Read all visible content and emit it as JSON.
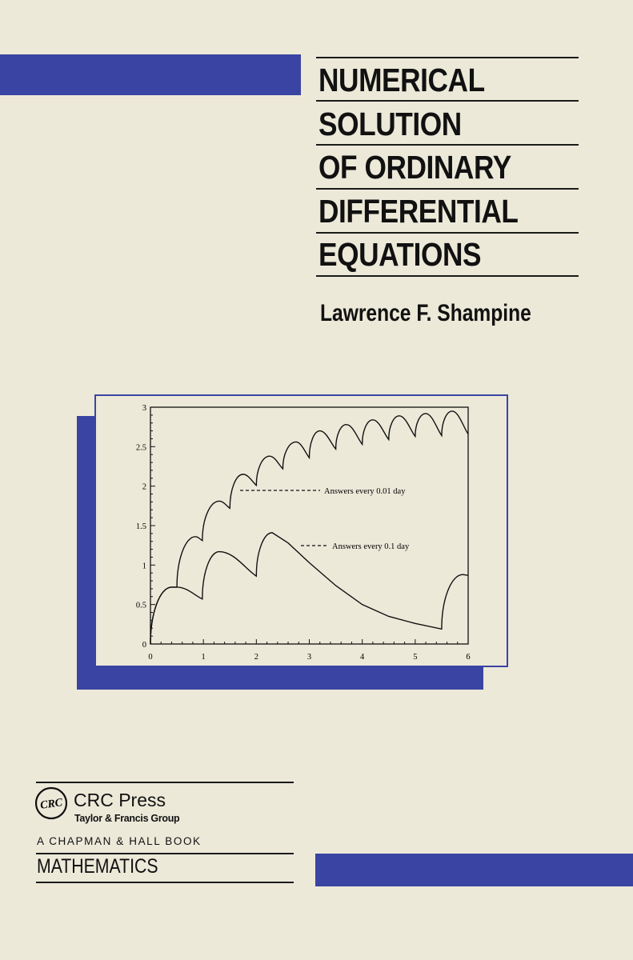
{
  "cover": {
    "title_lines": [
      "NUMERICAL",
      "SOLUTION",
      "OF ORDINARY",
      "DIFFERENTIAL",
      "EQUATIONS"
    ],
    "author": "Lawrence F. Shampine",
    "publisher": {
      "logo_text": "CRC",
      "name": "CRC Press",
      "group": "Taylor & Francis Group",
      "imprint": "A CHAPMAN & HALL BOOK"
    },
    "subject": "MATHEMATICS",
    "colors": {
      "background": "#ece9d9",
      "accent_blue": "#3a44a2",
      "ink": "#111111"
    }
  },
  "chart_data": {
    "type": "line",
    "title": "",
    "xlabel": "",
    "ylabel": "",
    "xlim": [
      0,
      6
    ],
    "ylim": [
      0,
      3
    ],
    "x_ticks": [
      "0",
      "1",
      "2",
      "3",
      "4",
      "5",
      "6"
    ],
    "y_ticks": [
      "0",
      "0.5",
      "1",
      "1.5",
      "2",
      "2.5",
      "3"
    ],
    "grid": false,
    "series": [
      {
        "name": "Answers every 0.01 day",
        "line_style": "dashed-key",
        "points": [
          [
            0,
            0
          ],
          [
            0.4,
            0.72
          ],
          [
            0.5,
            0.72
          ],
          [
            0.85,
            1.36
          ],
          [
            0.98,
            1.31
          ],
          [
            1.3,
            1.81
          ],
          [
            1.5,
            1.72
          ],
          [
            1.75,
            2.15
          ],
          [
            2.0,
            2.01
          ],
          [
            2.25,
            2.38
          ],
          [
            2.5,
            2.22
          ],
          [
            2.75,
            2.56
          ],
          [
            3.0,
            2.36
          ],
          [
            3.2,
            2.7
          ],
          [
            3.5,
            2.47
          ],
          [
            3.7,
            2.78
          ],
          [
            4.0,
            2.53
          ],
          [
            4.2,
            2.84
          ],
          [
            4.5,
            2.59
          ],
          [
            4.7,
            2.89
          ],
          [
            5.0,
            2.63
          ],
          [
            5.2,
            2.92
          ],
          [
            5.5,
            2.64
          ],
          [
            5.7,
            2.95
          ],
          [
            6.0,
            2.66
          ]
        ]
      },
      {
        "name": "Answers every 0.1 day",
        "line_style": "dashed-key",
        "points": [
          [
            0,
            0
          ],
          [
            0.4,
            0.72
          ],
          [
            0.5,
            0.72
          ],
          [
            0.98,
            0.57
          ],
          [
            1.3,
            1.17
          ],
          [
            2.0,
            0.86
          ],
          [
            2.3,
            1.41
          ],
          [
            2.6,
            1.28
          ],
          [
            3.0,
            1.03
          ],
          [
            3.5,
            0.74
          ],
          [
            4.0,
            0.5
          ],
          [
            4.5,
            0.35
          ],
          [
            5.0,
            0.26
          ],
          [
            5.5,
            0.19
          ],
          [
            5.9,
            0.88
          ],
          [
            6.0,
            0.87
          ]
        ]
      }
    ]
  }
}
